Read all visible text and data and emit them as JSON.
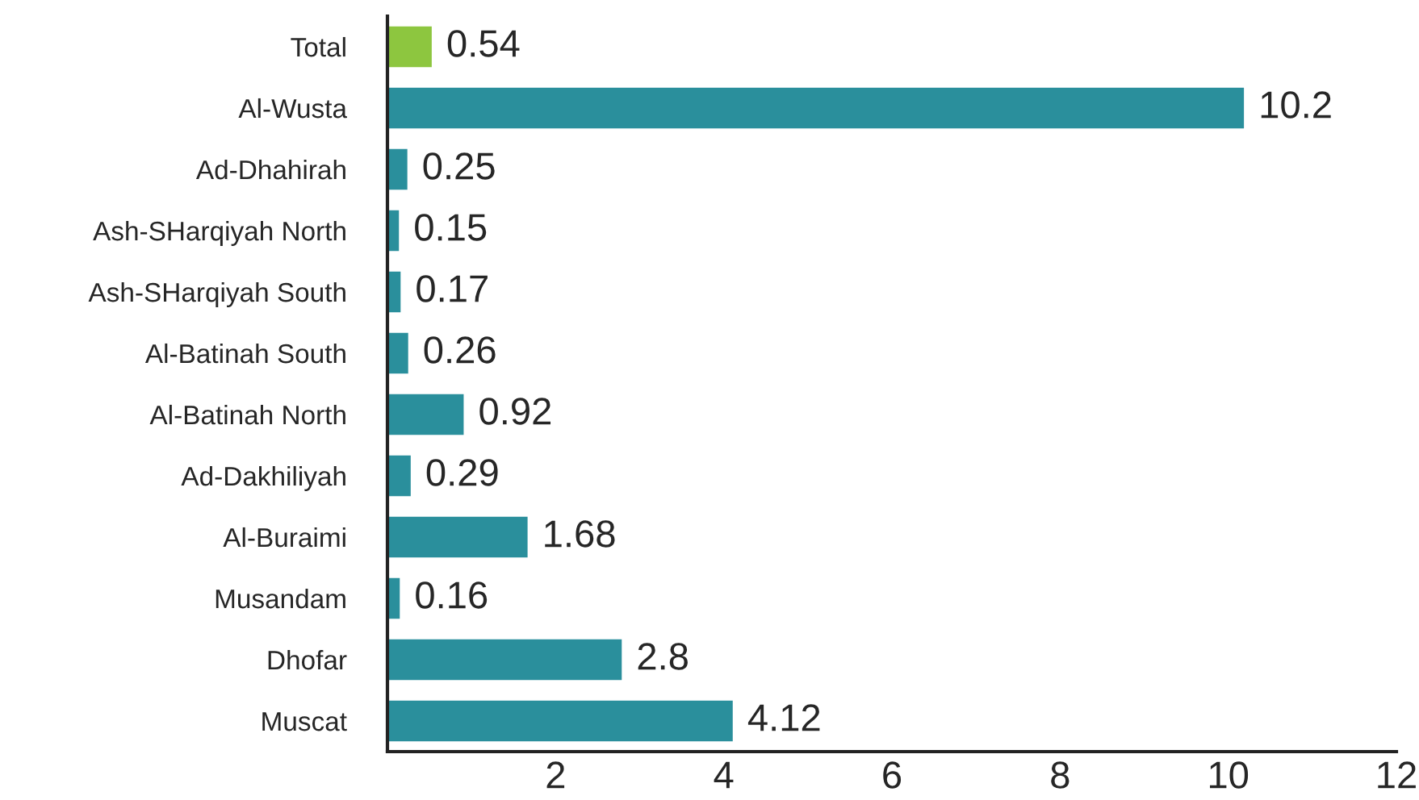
{
  "chart_data": {
    "type": "bar",
    "orientation": "horizontal",
    "categories": [
      "Total",
      "Al-Wusta",
      "Ad-Dhahirah",
      "Ash-SHarqiyah North",
      "Ash-SHarqiyah South",
      "Al-Batinah South",
      "Al-Batinah North",
      "Ad-Dakhiliyah",
      "Al-Buraimi",
      "Musandam",
      "Dhofar",
      "Muscat"
    ],
    "values": [
      0.54,
      10.2,
      0.25,
      0.15,
      0.17,
      0.26,
      0.92,
      0.29,
      1.68,
      0.16,
      2.8,
      4.12
    ],
    "colors": [
      "#8dc63f",
      "#2a8f9c",
      "#2a8f9c",
      "#2a8f9c",
      "#2a8f9c",
      "#2a8f9c",
      "#2a8f9c",
      "#2a8f9c",
      "#2a8f9c",
      "#2a8f9c",
      "#2a8f9c",
      "#2a8f9c"
    ],
    "xlim": [
      0,
      12
    ],
    "xticks": [
      2,
      4,
      6,
      8,
      10,
      12
    ],
    "data_labels": true,
    "grid": false,
    "legend": false
  }
}
